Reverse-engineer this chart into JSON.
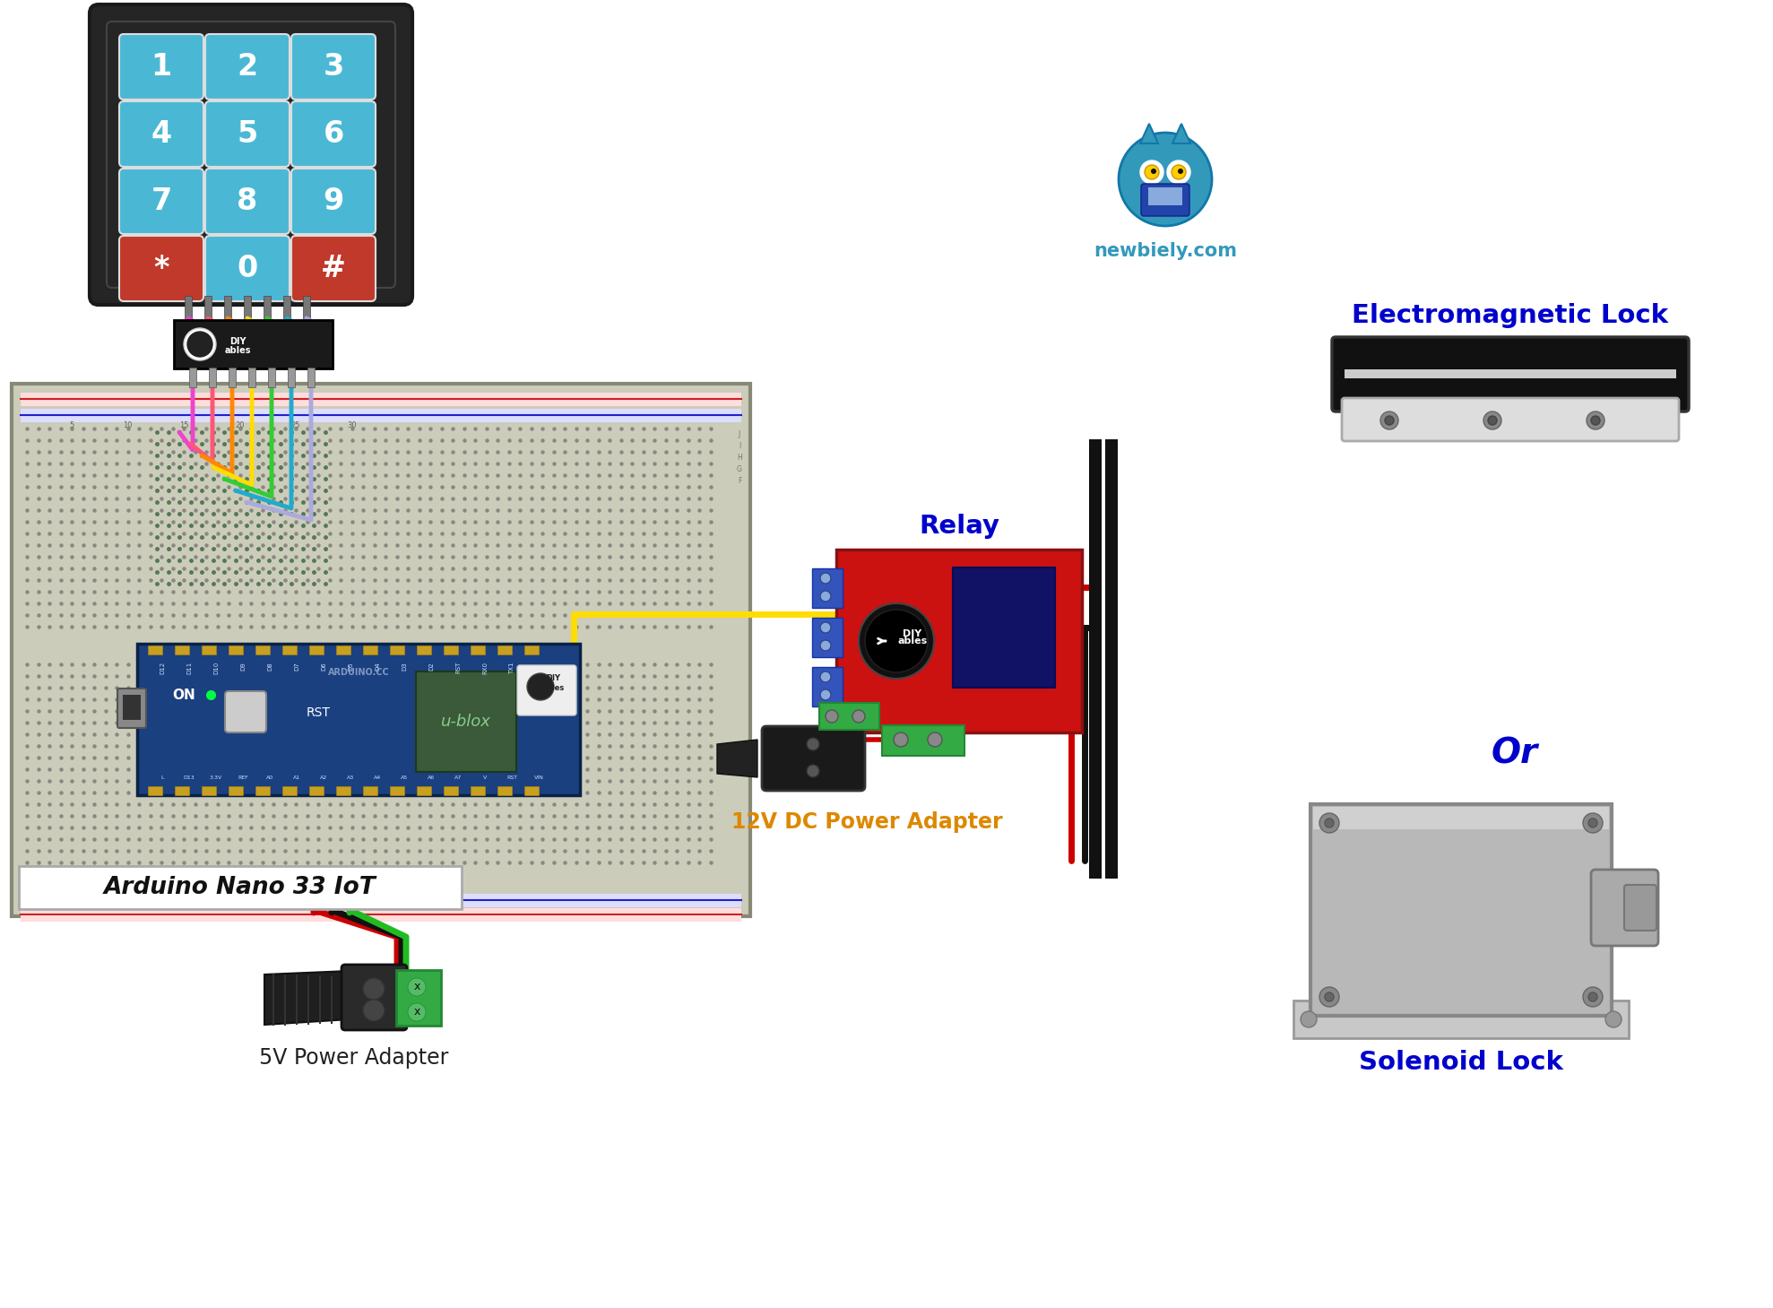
{
  "background_color": "#ffffff",
  "fig_width": 19.78,
  "fig_height": 14.59,
  "labels": {
    "arduino": "Arduino Nano 33 IoT",
    "relay": "Relay",
    "power_adapter_5v": "5V Power Adapter",
    "power_adapter_12v": "12V DC Power Adapter",
    "em_lock": "Electromagnetic Lock",
    "solenoid": "Solenoid Lock",
    "or_text": "Or",
    "website": "newbiely.com"
  },
  "colors": {
    "keypad_body": "#252525",
    "keypad_key_blue": "#4ab8d5",
    "keypad_key_red": "#c0392b",
    "keypad_key_text": "#ffffff",
    "breadboard_body": "#d8d0c0",
    "arduino_body": "#1a4080",
    "relay_body": "#cc1111",
    "wire_red": "#cc0000",
    "wire_black": "#111111",
    "wire_yellow": "#ffdd00",
    "wire_green": "#22bb22",
    "wire_pink": "#ee44aa",
    "wire_orange": "#dd8800",
    "wire_purple": "#9933cc",
    "wire_magenta": "#dd22aa",
    "wire_brown": "#885522",
    "label_blue": "#0000cc",
    "vertical_bar": "#111111",
    "breadboard_hole": "#888880",
    "breadboard_hole_green": "#449944",
    "rail_red": "#cc2222",
    "rail_blue": "#2222cc"
  }
}
